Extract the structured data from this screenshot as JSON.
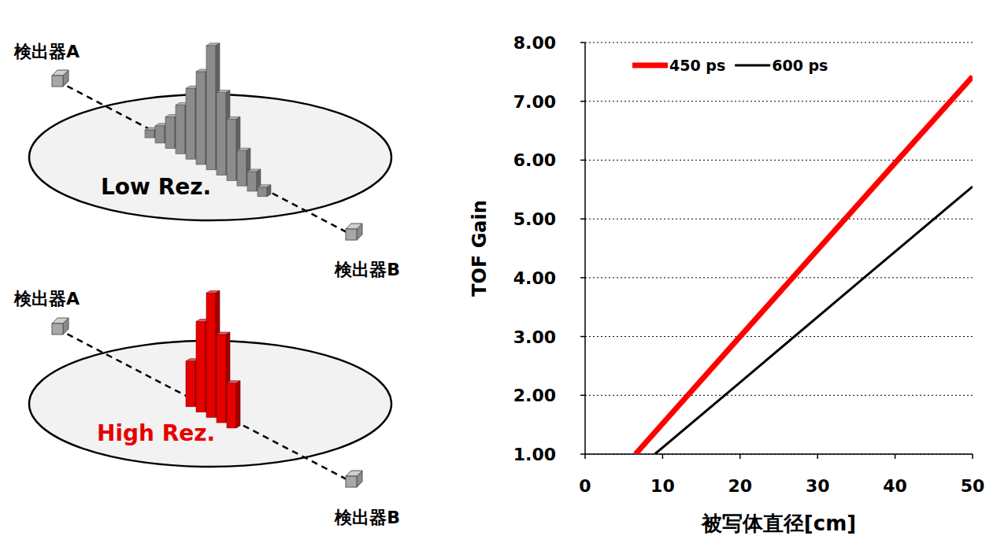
{
  "chart_data": {
    "type": "line",
    "x_label": "被写体直径[cm]",
    "y_label": "TOF Gain",
    "series": [
      {
        "name": "450 ps",
        "color": "#ff0000",
        "x": [
          6.5,
          20,
          40,
          50
        ],
        "values": [
          1.0,
          3.0,
          5.95,
          7.42
        ]
      },
      {
        "name": "600 ps",
        "color": "#000000",
        "x": [
          9,
          20,
          36,
          50
        ],
        "values": [
          1.0,
          2.22,
          4.0,
          5.55
        ]
      }
    ],
    "xlim": [
      0,
      50
    ],
    "xticks": [
      0,
      10,
      20,
      30,
      40,
      50
    ],
    "ylim": [
      1,
      8
    ],
    "yticks": [
      {
        "value": 1,
        "label": "1.00"
      },
      {
        "value": 2,
        "label": "2.00"
      },
      {
        "value": 3,
        "label": "3.00"
      },
      {
        "value": 4,
        "label": "4.00"
      },
      {
        "value": 5,
        "label": "5.00"
      },
      {
        "value": 6,
        "label": "6.00"
      },
      {
        "value": 7,
        "label": "7.00"
      },
      {
        "value": 8,
        "label": "8.00"
      }
    ],
    "grid": true,
    "legend": "upper-left"
  },
  "diagram": {
    "panels": [
      {
        "detector_a": "検出器A",
        "detector_b": "検出器B",
        "label": "Low Rez.",
        "label_color": "#000000",
        "bar_color": "#8c8c8c",
        "bars": [
          10,
          22,
          40,
          62,
          90,
          118,
          158,
          105,
          78,
          45,
          25,
          12
        ]
      },
      {
        "detector_a": "検出器A",
        "detector_b": "検出器B",
        "label": "High Rez.",
        "label_color": "#e60000",
        "bar_color": "#e60000",
        "bars": [
          58,
          115,
          158,
          112,
          57
        ]
      }
    ]
  }
}
